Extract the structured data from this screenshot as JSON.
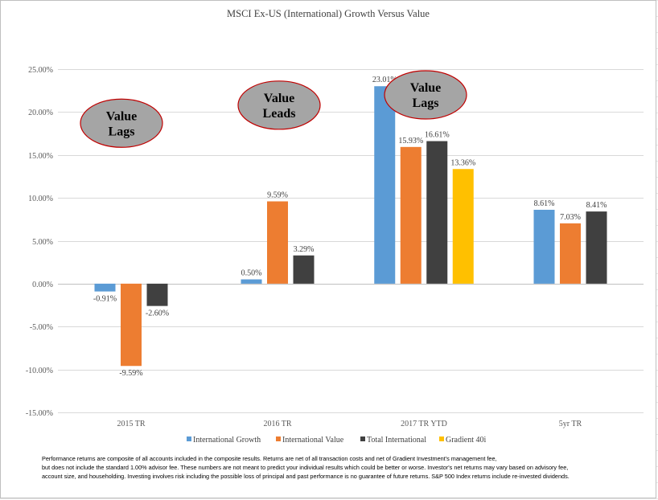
{
  "chart_data": {
    "type": "bar",
    "title": "MSCI Ex-US (International) Growth Versus Value",
    "categories": [
      "2015 TR",
      "2016 TR",
      "2017 TR YTD",
      "5yr TR"
    ],
    "ylim": [
      -15,
      25
    ],
    "yticks": [
      -15,
      -10,
      -5,
      0,
      5,
      10,
      15,
      20,
      25
    ],
    "ytick_labels": [
      "-15.00%",
      "-10.00%",
      "-5.00%",
      "0.00%",
      "5.00%",
      "10.00%",
      "15.00%",
      "20.00%",
      "25.00%"
    ],
    "grid": true,
    "legend_position": "bottom",
    "series": [
      {
        "name": "International Growth",
        "color": "#5b9bd5",
        "values": [
          -0.91,
          0.5,
          23.01,
          8.61
        ],
        "labels": [
          "-0.91%",
          "0.50%",
          "23.01%",
          "8.61%"
        ]
      },
      {
        "name": "International Value",
        "color": "#ed7d31",
        "values": [
          -9.59,
          9.59,
          15.93,
          7.03
        ],
        "labels": [
          "-9.59%",
          "9.59%",
          "15.93%",
          "7.03%"
        ]
      },
      {
        "name": "Total International",
        "color": "#404040",
        "values": [
          -2.6,
          3.29,
          16.61,
          8.41
        ],
        "labels": [
          "-2.60%",
          "3.29%",
          "16.61%",
          "8.41%"
        ]
      },
      {
        "name": "Gradient 40i",
        "color": "#ffc000",
        "values": [
          null,
          null,
          13.36,
          null
        ],
        "labels": [
          "",
          "",
          "13.36%",
          ""
        ]
      }
    ],
    "annotations": [
      {
        "lines": [
          "Value",
          "Lags"
        ],
        "category": "2015 TR",
        "value": 18.7
      },
      {
        "lines": [
          "Value",
          "Leads"
        ],
        "category": "2016 TR",
        "value": 20.8
      },
      {
        "lines": [
          "Value",
          "Lags"
        ],
        "category": "2017 TR YTD",
        "value": 22.0
      }
    ]
  },
  "footnote": [
    "Performance returns are composite of all accounts included in the composite results.   Returns are net of all transaction costs and net of Gradient Investment's management fee,",
    "but does not include the standard 1.00% advisor fee. These numbers are not meant to predict your individual results which could be better or worse. Investor's net returns may vary based on advisory fee,",
    "account size, and householding. Investing involves risk including the possible loss of principal and past performance is no guarantee of future returns. S&P 500 Index returns include re-invested dividends."
  ],
  "colors": {
    "bubble_fill": "#a5a5a5",
    "bubble_stroke": "#c00000",
    "grid": "#d9d9d9"
  }
}
